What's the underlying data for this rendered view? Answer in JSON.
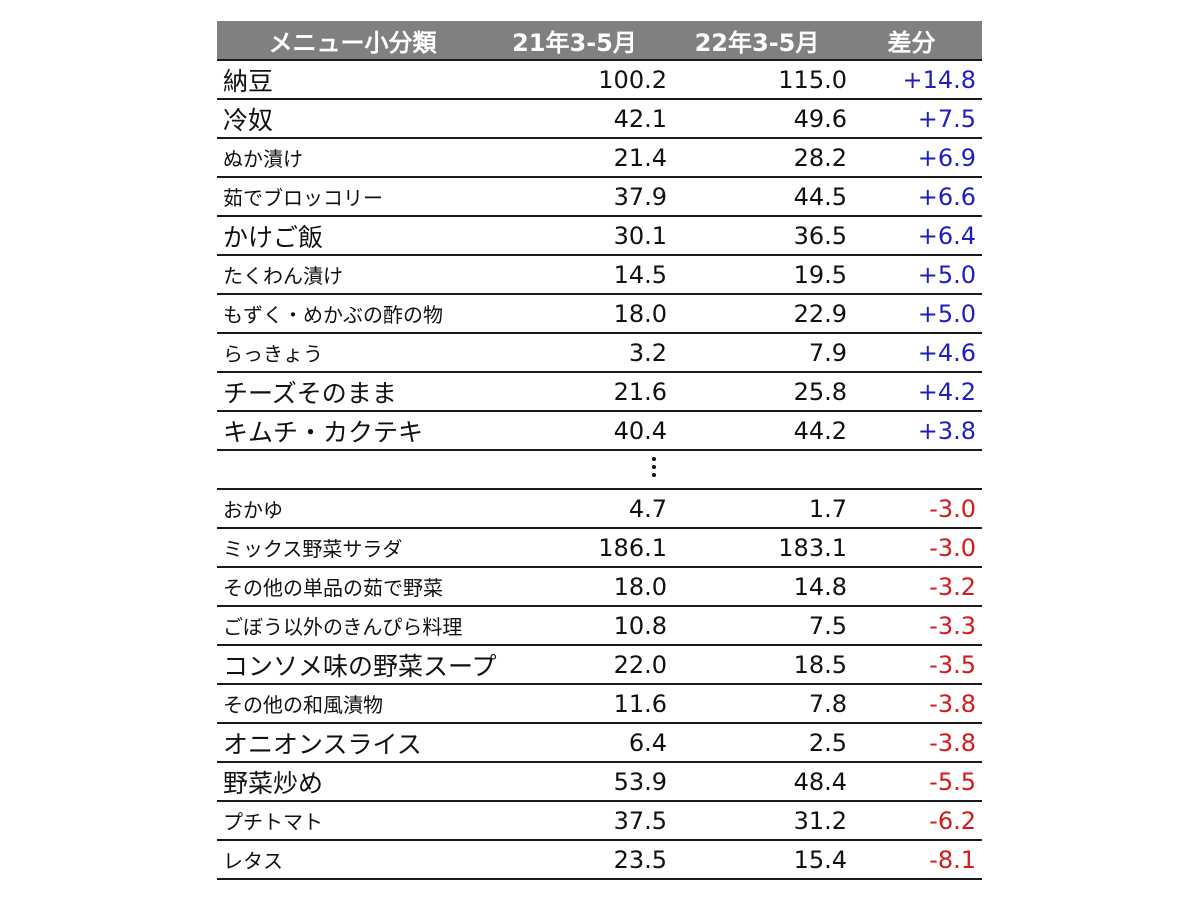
{
  "chart_data": {
    "type": "table",
    "columns": [
      "メニュー小分類",
      "21年3-5月",
      "22年3-5月",
      "差分"
    ],
    "top_rows": [
      {
        "name": "納豆",
        "v1": "100.2",
        "v2": "115.0",
        "diff": "+14.8",
        "size": "big"
      },
      {
        "name": "冷奴",
        "v1": "42.1",
        "v2": "49.6",
        "diff": "+7.5",
        "size": "big"
      },
      {
        "name": "ぬか漬け",
        "v1": "21.4",
        "v2": "28.2",
        "diff": "+6.9",
        "size": "small"
      },
      {
        "name": "茹でブロッコリー",
        "v1": "37.9",
        "v2": "44.5",
        "diff": "+6.6",
        "size": "small"
      },
      {
        "name": "かけご飯",
        "v1": "30.1",
        "v2": "36.5",
        "diff": "+6.4",
        "size": "big"
      },
      {
        "name": "たくわん漬け",
        "v1": "14.5",
        "v2": "19.5",
        "diff": "+5.0",
        "size": "small"
      },
      {
        "name": "もずく・めかぶの酢の物",
        "v1": "18.0",
        "v2": "22.9",
        "diff": "+5.0",
        "size": "small"
      },
      {
        "name": "らっきょう",
        "v1": "3.2",
        "v2": "7.9",
        "diff": "+4.6",
        "size": "small"
      },
      {
        "name": "チーズそのまま",
        "v1": "21.6",
        "v2": "25.8",
        "diff": "+4.2",
        "size": "big"
      },
      {
        "name": "キムチ・カクテキ",
        "v1": "40.4",
        "v2": "44.2",
        "diff": "+3.8",
        "size": "big"
      }
    ],
    "bottom_rows": [
      {
        "name": "おかゆ",
        "v1": "4.7",
        "v2": "1.7",
        "diff": "-3.0",
        "size": "small"
      },
      {
        "name": "ミックス野菜サラダ",
        "v1": "186.1",
        "v2": "183.1",
        "diff": "-3.0",
        "size": "small"
      },
      {
        "name": "その他の単品の茹で野菜",
        "v1": "18.0",
        "v2": "14.8",
        "diff": "-3.2",
        "size": "small"
      },
      {
        "name": "ごぼう以外のきんぴら料理",
        "v1": "10.8",
        "v2": "7.5",
        "diff": "-3.3",
        "size": "small"
      },
      {
        "name": "コンソメ味の野菜スープ",
        "v1": "22.0",
        "v2": "18.5",
        "diff": "-3.5",
        "size": "big"
      },
      {
        "name": "その他の和風漬物",
        "v1": "11.6",
        "v2": "7.8",
        "diff": "-3.8",
        "size": "small"
      },
      {
        "name": "オニオンスライス",
        "v1": "6.4",
        "v2": "2.5",
        "diff": "-3.8",
        "size": "big"
      },
      {
        "name": "野菜炒め",
        "v1": "53.9",
        "v2": "48.4",
        "diff": "-5.5",
        "size": "big"
      },
      {
        "name": "プチトマト",
        "v1": "37.5",
        "v2": "31.2",
        "diff": "-6.2",
        "size": "small"
      },
      {
        "name": "レタス",
        "v1": "23.5",
        "v2": "15.4",
        "diff": "-8.1",
        "size": "small"
      }
    ],
    "colors": {
      "header_bg": "#808080",
      "positive": "#1f1fbf",
      "negative": "#d41a1a"
    }
  }
}
